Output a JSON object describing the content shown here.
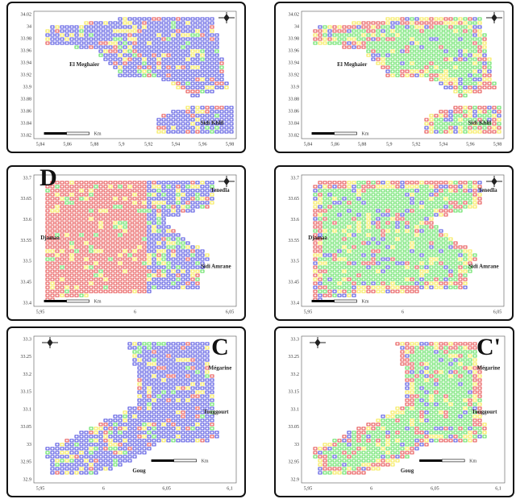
{
  "panels": [
    {
      "yticks": [
        "34.02",
        "34",
        "33.98",
        "33.96",
        "33.94",
        "33.92",
        "33.9",
        "33.88",
        "33.86",
        "33.84",
        "33.82"
      ],
      "xticks": [
        "5,84",
        "5,86",
        "5,88",
        "5,9",
        "5,92",
        "5,94",
        "5,96",
        "5,98"
      ],
      "places": [
        "El Meghaier",
        "Sidi Khlil"
      ],
      "scale": "Km"
    },
    {
      "yticks": [
        "34.02",
        "34",
        "33.98",
        "33.96",
        "33.94",
        "33.92",
        "33.9",
        "33.88",
        "33.86",
        "33.84",
        "33.82"
      ],
      "xticks": [
        "5,84",
        "5,86",
        "5,88",
        "5,9",
        "5,92",
        "5,94",
        "5,96",
        "5,98"
      ],
      "places": [
        "El Meghaier",
        "Sidi Khlil"
      ],
      "scale": "Km"
    },
    {
      "letter": "D",
      "yticks": [
        "33.7",
        "33.65",
        "33.6",
        "33.55",
        "33.5",
        "33.45",
        "33.4"
      ],
      "xticks": [
        "5,95",
        "6",
        "6,05"
      ],
      "places": [
        "Tenedla",
        "Djamaa",
        "Sidi Amrane"
      ],
      "scale": "Km"
    },
    {
      "yticks": [
        "33.7",
        "33.65",
        "33.6",
        "33.55",
        "33.5",
        "33.45",
        "33.4"
      ],
      "xticks": [
        "5,95",
        "6",
        "6,05"
      ],
      "places": [
        "Tenedla",
        "Djamaa",
        "Sidi Amrane"
      ],
      "scale": "Km"
    },
    {
      "letter": "C",
      "yticks": [
        "33.3",
        "33.25",
        "33.2",
        "33.15",
        "33.1",
        "33.05",
        "33",
        "32.95",
        "32.9"
      ],
      "xticks": [
        "5,95",
        "6",
        "6,05",
        "6,1"
      ],
      "places": [
        "Mégarine",
        "Touggourt",
        "Goug"
      ],
      "scale": "Km"
    },
    {
      "letter": "C'",
      "yticks": [
        "33.3",
        "33.25",
        "33.2",
        "33.15",
        "33.1",
        "33.05",
        "33",
        "32.95",
        "32.9"
      ],
      "xticks": [
        "5,95",
        "6",
        "6,05",
        "6,1"
      ],
      "places": [
        "Mégarine",
        "Touggourt",
        "Goug"
      ],
      "scale": "Km"
    }
  ]
}
